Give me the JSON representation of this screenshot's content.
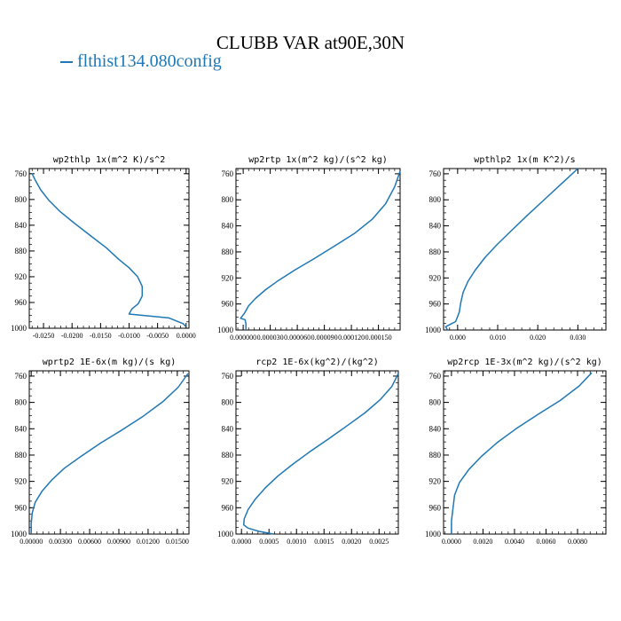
{
  "figure": {
    "title": "CLUBB VAR at90E,30N",
    "legend": {
      "label": "flthist134.080config",
      "color": "#1f77b4"
    }
  },
  "chart_data": [
    {
      "type": "line",
      "title": "wp2thlp  1x(m^2 K)/s^2",
      "xlim": [
        -0.0275,
        0.0005
      ],
      "ylim": [
        1000,
        752
      ],
      "xticks": [
        -0.025,
        -0.02,
        -0.015,
        -0.01,
        -0.005,
        0.0
      ],
      "xtick_labels": [
        "-0.0250",
        "-0.0200",
        "-0.0150",
        "-0.0100",
        "-0.0050",
        "0.0000"
      ],
      "yticks": [
        760,
        800,
        840,
        880,
        920,
        960,
        1000
      ],
      "ytick_labels": [
        "760",
        "800",
        "840",
        "880",
        "920",
        "960",
        "1000"
      ],
      "series": [
        {
          "color": "#1f77b4",
          "x": [
            -0.027,
            -0.0264,
            -0.0255,
            -0.0241,
            -0.0222,
            -0.0197,
            -0.0168,
            -0.014,
            -0.0118,
            -0.01,
            -0.0085,
            -0.0077,
            -0.0077,
            -0.0084,
            -0.0095,
            -0.01,
            -0.003,
            -0.0005,
            0.0
          ],
          "y": [
            760,
            771,
            785,
            801,
            818,
            836,
            856,
            875,
            893,
            906,
            920,
            935,
            950,
            962,
            970,
            978,
            984,
            993,
            998
          ]
        }
      ]
    },
    {
      "type": "line",
      "title": "wp2rtp  1x(m^2 kg)/(s^2 kg)",
      "xlim": [
        -8e-06,
        0.000174
      ],
      "ylim": [
        1000,
        752
      ],
      "xticks": [
        0.0,
        3e-05,
        6e-05,
        9e-05,
        0.00012,
        0.00015
      ],
      "xtick_labels": [
        "0.000000",
        "0.000030",
        "0.000060",
        "0.000090",
        "0.000120",
        "0.000150"
      ],
      "yticks": [
        760,
        800,
        840,
        880,
        920,
        960,
        1000
      ],
      "ytick_labels": [
        "760",
        "800",
        "840",
        "880",
        "920",
        "960",
        "1000"
      ],
      "series": [
        {
          "color": "#1f77b4",
          "x": [
            0.000174,
            0.000168,
            0.000158,
            0.000143,
            0.000123,
            0.0001,
            7.8e-05,
            5.7e-05,
            3.9e-05,
            2.5e-05,
            1.4e-05,
            6e-06,
            1.5e-06,
            -3e-06,
            2e-06,
            3e-06,
            3e-06
          ],
          "y": [
            756,
            780,
            806,
            830,
            852,
            872,
            891,
            908,
            924,
            938,
            951,
            963,
            974,
            982,
            984,
            990,
            1000
          ]
        }
      ]
    },
    {
      "type": "line",
      "title": "wpthlp2  1x(m K^2)/s",
      "xlim": [
        -0.0035,
        0.037
      ],
      "ylim": [
        1000,
        752
      ],
      "xticks": [
        0.0,
        0.01,
        0.02,
        0.03
      ],
      "xtick_labels": [
        "0.000",
        "0.010",
        "0.020",
        "0.030"
      ],
      "yticks": [
        760,
        800,
        840,
        880,
        920,
        960,
        1000
      ],
      "ytick_labels": [
        "760",
        "800",
        "840",
        "880",
        "920",
        "960",
        "1000"
      ],
      "series": [
        {
          "color": "#1f77b4",
          "x": [
            0.03,
            0.0258,
            0.0214,
            0.0172,
            0.0133,
            0.0098,
            0.0068,
            0.0044,
            0.0026,
            0.0014,
            0.0008,
            0.0004,
            -0.0005,
            -0.003,
            -0.0025
          ],
          "y": [
            752,
            776,
            801,
            825,
            848,
            869,
            889,
            908,
            925,
            942,
            958,
            973,
            987,
            995,
            1000
          ]
        }
      ]
    },
    {
      "type": "line",
      "title": "wprtp2  1E-6x(m kg)/(s kg)",
      "xlim": [
        -0.0002,
        0.0162
      ],
      "ylim": [
        1000,
        752
      ],
      "xticks": [
        0.0,
        0.003,
        0.006,
        0.009,
        0.012,
        0.015
      ],
      "xtick_labels": [
        "0.00000",
        "0.00300",
        "0.00600",
        "0.00900",
        "0.01200",
        "0.01500"
      ],
      "yticks": [
        760,
        800,
        840,
        880,
        920,
        960,
        1000
      ],
      "ytick_labels": [
        "760",
        "800",
        "840",
        "880",
        "920",
        "960",
        "1000"
      ],
      "series": [
        {
          "color": "#1f77b4",
          "x": [
            0.0161,
            0.0151,
            0.0135,
            0.0115,
            0.0093,
            0.0071,
            0.0051,
            0.0034,
            0.0021,
            0.0011,
            0.0004,
            0.0001,
            0.0,
            0.0
          ],
          "y": [
            756,
            777,
            799,
            821,
            842,
            862,
            882,
            900,
            918,
            935,
            952,
            968,
            984,
            1000
          ]
        }
      ]
    },
    {
      "type": "line",
      "title": "rcp2  1E-6x(kg^2)/(kg^2)",
      "xlim": [
        -0.0001,
        0.00285
      ],
      "ylim": [
        1000,
        752
      ],
      "xticks": [
        0.0,
        0.0005,
        0.001,
        0.0015,
        0.002,
        0.0025
      ],
      "xtick_labels": [
        "0.0000",
        "0.0005",
        "0.0010",
        "0.0015",
        "0.0020",
        "0.0025"
      ],
      "yticks": [
        760,
        800,
        840,
        880,
        920,
        960,
        1000
      ],
      "ytick_labels": [
        "760",
        "800",
        "840",
        "880",
        "920",
        "960",
        "1000"
      ],
      "series": [
        {
          "color": "#1f77b4",
          "x": [
            0.00285,
            0.00273,
            0.00252,
            0.00224,
            0.00191,
            0.00157,
            0.00124,
            0.00093,
            0.00066,
            0.00043,
            0.00025,
            0.00012,
            5e-05,
            4e-05,
            0.00012,
            0.00032,
            0.00058
          ],
          "y": [
            756,
            776,
            796,
            816,
            836,
            856,
            875,
            894,
            912,
            930,
            947,
            963,
            977,
            986,
            991,
            996,
            1000
          ]
        }
      ]
    },
    {
      "type": "line",
      "title": "wp2rcp  1E-3x(m^2 kg)/(s^2 kg)",
      "xlim": [
        -0.0005,
        0.0098
      ],
      "ylim": [
        1000,
        752
      ],
      "xticks": [
        0.0,
        0.002,
        0.004,
        0.006,
        0.008
      ],
      "xtick_labels": [
        "0.0000",
        "0.0020",
        "0.0040",
        "0.0060",
        "0.0080"
      ],
      "yticks": [
        760,
        800,
        840,
        880,
        920,
        960,
        1000
      ],
      "ytick_labels": [
        "760",
        "800",
        "840",
        "880",
        "920",
        "960",
        "1000"
      ],
      "series": [
        {
          "color": "#1f77b4",
          "x": [
            0.0089,
            0.0081,
            0.0069,
            0.0055,
            0.0041,
            0.0029,
            0.0019,
            0.0011,
            0.0005,
            0.0002,
            0.0001,
            0.0,
            0.0
          ],
          "y": [
            755,
            775,
            797,
            818,
            840,
            861,
            882,
            902,
            922,
            941,
            960,
            980,
            1000
          ]
        }
      ]
    }
  ]
}
